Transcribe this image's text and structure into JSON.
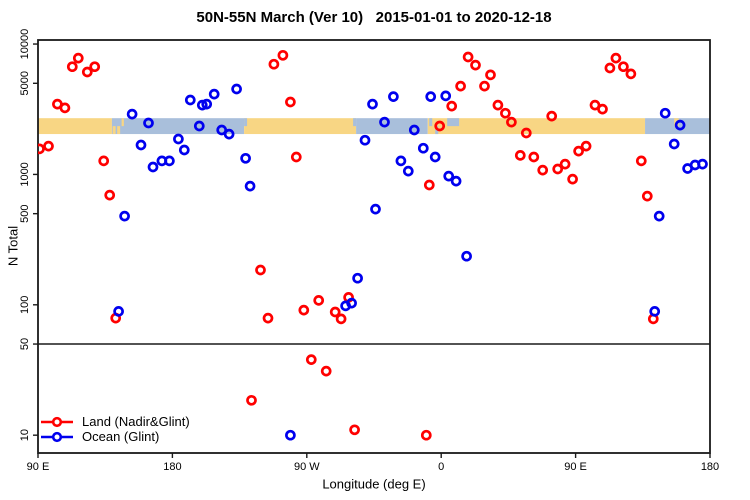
{
  "chart_data": {
    "type": "scatter",
    "title": "50N-55N March (Ver 10)   2015-01-01 to 2020-12-18",
    "xlabel": "Longitude (deg E)",
    "ylabel": "N Total",
    "x_axis": {
      "range": [
        90,
        540
      ],
      "note": "longitude axis wraps eastward from 90E through 180, 90W, 0 back to 180",
      "ticks": [
        {
          "pos": 90,
          "label": "90 E"
        },
        {
          "pos": 180,
          "label": "180"
        },
        {
          "pos": 270,
          "label": "90 W"
        },
        {
          "pos": 360,
          "label": "0"
        },
        {
          "pos": 450,
          "label": "90 E"
        },
        {
          "pos": 540,
          "label": "180"
        }
      ]
    },
    "y_axis": {
      "scale": "log10",
      "limits": [
        7.3,
        10740
      ],
      "ticks": [
        {
          "value": 10000,
          "label": "10000"
        },
        {
          "value": 5000,
          "label": "5000"
        },
        {
          "value": 1000,
          "label": "1000"
        },
        {
          "value": 500,
          "label": "500"
        },
        {
          "value": 100,
          "label": "100"
        },
        {
          "value": 50,
          "label": "50"
        },
        {
          "value": 10,
          "label": "10"
        }
      ]
    },
    "threshold_line": 50,
    "land_ocean_strip": {
      "n_top": 2700,
      "n_bottom": 2040,
      "land_color": "#F8D684",
      "ocean_color": "#A9BFDB",
      "segments": [
        {
          "from": 90,
          "to": 139.5,
          "type": "land"
        },
        {
          "from": 139.5,
          "to": 228,
          "type": "ocean"
        },
        {
          "from": 228,
          "to": 303,
          "type": "land"
        },
        {
          "from": 303,
          "to": 351,
          "type": "ocean"
        },
        {
          "from": 351,
          "to": 496.5,
          "type": "land"
        },
        {
          "from": 496.5,
          "to": 540,
          "type": "ocean"
        }
      ],
      "speckles": [
        {
          "from": 140,
          "to": 142,
          "type": "land",
          "half": "bottom"
        },
        {
          "from": 143,
          "to": 145,
          "type": "land",
          "half": "bottom"
        },
        {
          "from": 146,
          "to": 147.5,
          "type": "land",
          "half": "top"
        },
        {
          "from": 228,
          "to": 230,
          "type": "ocean",
          "half": "top"
        },
        {
          "from": 301,
          "to": 303,
          "type": "ocean",
          "half": "top"
        },
        {
          "from": 352,
          "to": 354,
          "type": "ocean",
          "half": "top"
        },
        {
          "from": 356,
          "to": 358,
          "type": "ocean",
          "half": "bottom"
        },
        {
          "from": 364,
          "to": 372,
          "type": "ocean",
          "half": "top"
        },
        {
          "from": 516,
          "to": 519,
          "type": "land",
          "half": "top"
        }
      ]
    },
    "series": [
      {
        "name": "Land (Nadir&Glint)",
        "color": "#FF0000",
        "points": [
          [
            117,
            7800
          ],
          [
            113,
            6700
          ],
          [
            123,
            6100
          ],
          [
            128,
            6700
          ],
          [
            103,
            3460
          ],
          [
            108,
            3240
          ],
          [
            91,
            1570
          ],
          [
            97,
            1650
          ],
          [
            134,
            1270
          ],
          [
            138,
            694
          ],
          [
            142,
            79
          ],
          [
            254,
            8200
          ],
          [
            248,
            7000
          ],
          [
            259,
            3590
          ],
          [
            263,
            1360
          ],
          [
            239,
            185
          ],
          [
            244,
            79
          ],
          [
            233,
            18.5
          ],
          [
            268,
            91
          ],
          [
            273,
            38
          ],
          [
            278,
            108
          ],
          [
            283,
            31
          ],
          [
            289,
            88
          ],
          [
            293,
            78
          ],
          [
            298,
            114
          ],
          [
            302,
            11
          ],
          [
            350,
            10
          ],
          [
            352,
            830
          ],
          [
            359,
            2350
          ],
          [
            367,
            3340
          ],
          [
            373,
            4760
          ],
          [
            378,
            7950
          ],
          [
            383,
            6900
          ],
          [
            389,
            4760
          ],
          [
            393,
            5800
          ],
          [
            398,
            3400
          ],
          [
            403,
            2950
          ],
          [
            407,
            2520
          ],
          [
            413,
            1400
          ],
          [
            417,
            2080
          ],
          [
            422,
            1360
          ],
          [
            428,
            1080
          ],
          [
            434,
            2800
          ],
          [
            438,
            1100
          ],
          [
            443,
            1200
          ],
          [
            448,
            920
          ],
          [
            452,
            1510
          ],
          [
            457,
            1650
          ],
          [
            463,
            3400
          ],
          [
            468,
            3170
          ],
          [
            473,
            6550
          ],
          [
            477,
            7800
          ],
          [
            482,
            6700
          ],
          [
            487,
            5900
          ],
          [
            494,
            1270
          ],
          [
            498,
            682
          ],
          [
            502,
            78
          ]
        ]
      },
      {
        "name": "Ocean (Glint)",
        "color": "#0000EE",
        "points": [
          [
            144,
            89
          ],
          [
            148,
            479
          ],
          [
            153,
            2900
          ],
          [
            159,
            1680
          ],
          [
            164,
            2480
          ],
          [
            167,
            1140
          ],
          [
            173,
            1270
          ],
          [
            178,
            1270
          ],
          [
            184,
            1870
          ],
          [
            188,
            1540
          ],
          [
            192,
            3720
          ],
          [
            198,
            2350
          ],
          [
            200,
            3400
          ],
          [
            203,
            3460
          ],
          [
            208,
            4130
          ],
          [
            213,
            2190
          ],
          [
            218,
            2040
          ],
          [
            223,
            4520
          ],
          [
            229,
            1330
          ],
          [
            232,
            813
          ],
          [
            259,
            10
          ],
          [
            296,
            98
          ],
          [
            300,
            103
          ],
          [
            304,
            160
          ],
          [
            309,
            1830
          ],
          [
            314,
            3460
          ],
          [
            316,
            542
          ],
          [
            322,
            2520
          ],
          [
            328,
            3950
          ],
          [
            333,
            1270
          ],
          [
            338,
            1060
          ],
          [
            342,
            2190
          ],
          [
            348,
            1590
          ],
          [
            353,
            3950
          ],
          [
            356,
            1360
          ],
          [
            363,
            4000
          ],
          [
            365,
            971
          ],
          [
            370,
            889
          ],
          [
            377,
            236
          ],
          [
            503,
            89
          ],
          [
            506,
            479
          ],
          [
            510,
            2950
          ],
          [
            516,
            1710
          ],
          [
            520,
            2390
          ],
          [
            525,
            1110
          ],
          [
            530,
            1180
          ],
          [
            535,
            1200
          ]
        ]
      }
    ],
    "legend_position": "bottom-left"
  },
  "legend": {
    "items": [
      {
        "label": "Land (Nadir&Glint)",
        "color": "#FF0000"
      },
      {
        "label": "Ocean (Glint)",
        "color": "#0000EE"
      }
    ]
  }
}
